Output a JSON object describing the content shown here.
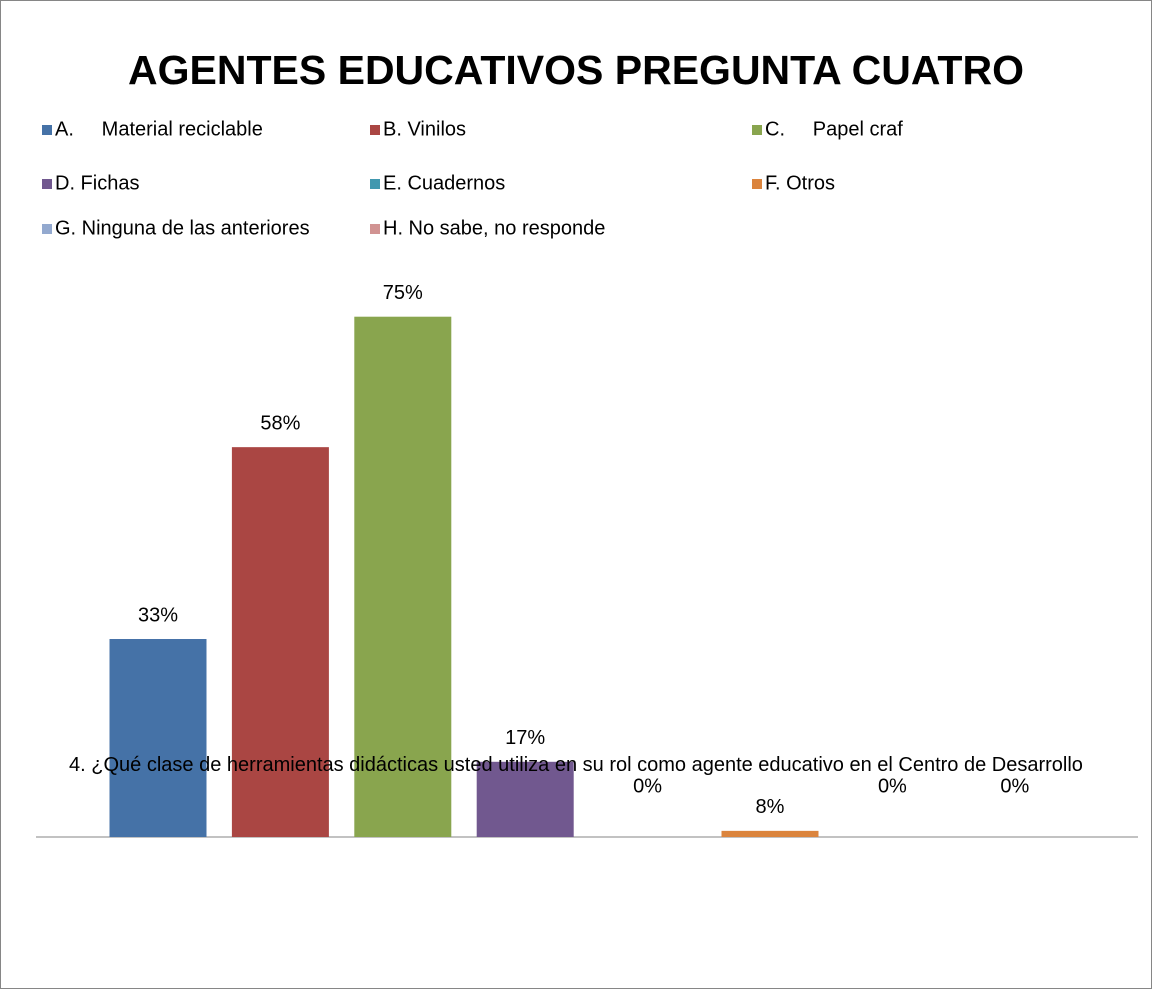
{
  "chart_data": {
    "type": "bar",
    "title": "AGENTES EDUCATIVOS PREGUNTA CUATRO",
    "xlabel": "4. ¿Qué clase de herramientas didácticas usted utiliza en su rol como agente educativo en el Centro de Desarrollo",
    "ylim": [
      7.2,
      79
    ],
    "series": [
      {
        "name": "A.     Material reciclable",
        "color": "#4572a7",
        "values": [
          33
        ],
        "value_labels": [
          "33%"
        ]
      },
      {
        "name": "B. Vinilos",
        "color": "#aa4643",
        "values": [
          58
        ],
        "value_labels": [
          "58%"
        ]
      },
      {
        "name": "C.     Papel craf",
        "color": "#89a54e",
        "values": [
          75
        ],
        "value_labels": [
          "75%"
        ]
      },
      {
        "name": "D. Fichas",
        "color": "#71588f",
        "values": [
          17
        ],
        "value_labels": [
          "17%"
        ]
      },
      {
        "name": "E. Cuadernos",
        "color": "#4198af",
        "values": [
          0
        ],
        "value_labels": [
          "0%"
        ]
      },
      {
        "name": "F. Otros",
        "color": "#db843d",
        "values": [
          8
        ],
        "value_labels": [
          "8%"
        ]
      },
      {
        "name": "G. Ninguna de las anteriores",
        "color": "#93a9cf",
        "values": [
          0
        ],
        "value_labels": [
          "0%"
        ]
      },
      {
        "name": "H. No sabe, no responde",
        "color": "#d19392",
        "values": [
          0
        ],
        "value_labels": [
          "0%"
        ]
      }
    ]
  }
}
